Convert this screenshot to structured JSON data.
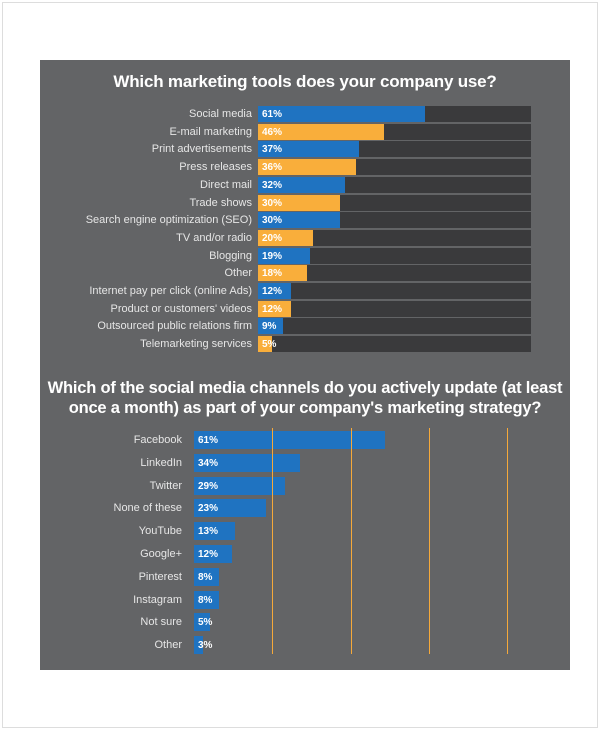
{
  "chart_data": [
    {
      "type": "bar",
      "orientation": "horizontal",
      "title": "Which marketing tools does your company use?",
      "xlim": [
        0,
        100
      ],
      "categories": [
        "Social media",
        "E-mail marketing",
        "Print advertisements",
        "Press releases",
        "Direct mail",
        "Trade shows",
        "Search engine optimization (SEO)",
        "TV and/or radio",
        "Blogging",
        "Other",
        "Internet pay per click (online Ads)",
        "Product or customers' videos",
        "Outsourced public relations firm",
        "Telemarketing services"
      ],
      "values": [
        61,
        46,
        37,
        36,
        32,
        30,
        30,
        20,
        19,
        18,
        12,
        12,
        9,
        5
      ],
      "labels": [
        "61%",
        "46%",
        "37%",
        "36%",
        "32%",
        "30%",
        "30%",
        "20%",
        "19%",
        "18%",
        "12%",
        "12%",
        "9%",
        "5%"
      ],
      "colors": [
        "#1f73c1",
        "#f9ae3b"
      ],
      "track_color": "#3a3a3c"
    },
    {
      "type": "bar",
      "orientation": "horizontal",
      "title": "Which of the social media channels do you actively update (at least once a month) as part of your company's marketing strategy?",
      "xlim": [
        0,
        100
      ],
      "gridlines": [
        25,
        50,
        75,
        100
      ],
      "categories": [
        "Facebook",
        "LinkedIn",
        "Twitter",
        "None of these",
        "YouTube",
        "Google+",
        "Pinterest",
        "Instagram",
        "Not sure",
        "Other"
      ],
      "values": [
        61,
        34,
        29,
        23,
        13,
        12,
        8,
        8,
        5,
        3
      ],
      "labels": [
        "61%",
        "34%",
        "29%",
        "23%",
        "13%",
        "12%",
        "8%",
        "8%",
        "5%",
        "3%"
      ],
      "colors": [
        "#1f73c1"
      ],
      "grid_color": "#f5a93a"
    }
  ]
}
